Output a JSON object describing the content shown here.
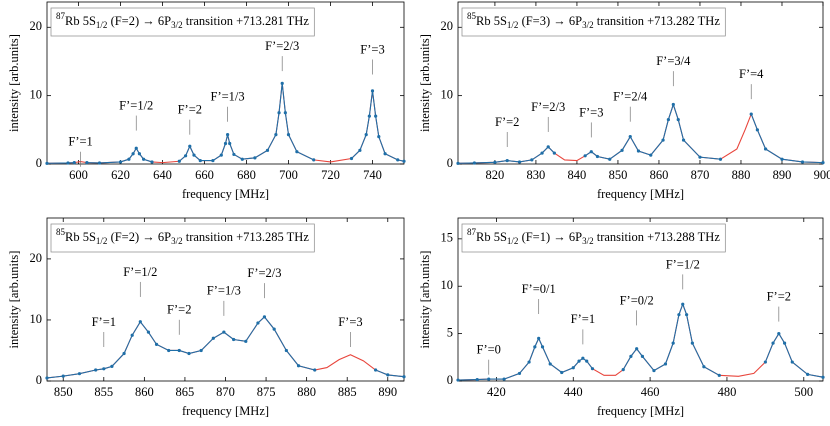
{
  "chart_data": [
    {
      "type": "line",
      "title": [
        "87",
        "Rb 5S",
        "1/2",
        " (F=2) → 6P",
        "3/2",
        " transition +713.281 THz"
      ],
      "xlabel": "frequency [MHz]",
      "ylabel": "intensity [arb.units]",
      "xlim": [
        585,
        755
      ],
      "ylim": [
        0,
        23.7
      ],
      "xticks": [
        600,
        620,
        640,
        660,
        680,
        700,
        720,
        740
      ],
      "yticks": [
        0,
        10,
        20
      ],
      "x": [
        585,
        595,
        598,
        601,
        604,
        610,
        620,
        624,
        626,
        627.5,
        629,
        631,
        635,
        640,
        648,
        651,
        653,
        655,
        658,
        664,
        668,
        670,
        671,
        672,
        674,
        678,
        684,
        690,
        694,
        695.5,
        697,
        698.5,
        700,
        704,
        712,
        720,
        730,
        734,
        737,
        738.5,
        740,
        741.5,
        743,
        746,
        752,
        755
      ],
      "series": [
        {
          "color": "#e8453c",
          "values": [
            0.1,
            0.15,
            0.2,
            0.35,
            0.2,
            0.15,
            0.3,
            0.7,
            1.5,
            2.3,
            1.5,
            0.7,
            0.3,
            0.2,
            0.4,
            1.2,
            2.6,
            1.3,
            0.5,
            0.5,
            1.3,
            3.0,
            4.3,
            3.0,
            1.4,
            0.7,
            0.9,
            2.0,
            4.3,
            7.5,
            11.8,
            7.5,
            4.3,
            1.8,
            0.6,
            0.3,
            0.8,
            2.0,
            4.3,
            7.0,
            10.7,
            7.0,
            4.0,
            1.5,
            0.6,
            0.4
          ]
        },
        {
          "color": "#1f6fa8",
          "marker": "circle",
          "values": [
            0.1,
            0.15,
            0.2,
            null,
            0.2,
            0.15,
            0.3,
            0.7,
            1.5,
            2.3,
            1.5,
            0.7,
            0.3,
            null,
            0.4,
            1.2,
            2.6,
            1.3,
            0.5,
            0.5,
            1.3,
            3.0,
            4.3,
            3.0,
            1.4,
            0.7,
            0.9,
            2.0,
            4.3,
            7.5,
            11.8,
            7.5,
            4.3,
            1.8,
            0.6,
            null,
            0.8,
            2.0,
            4.3,
            7.0,
            10.7,
            7.0,
            4.0,
            1.5,
            0.6,
            0.4
          ]
        }
      ],
      "annotations": [
        {
          "text": "F’=1",
          "x": 601,
          "y": 3.1
        },
        {
          "text": "F’=1/2",
          "x": 627.5,
          "y": 8.4
        },
        {
          "text": "F’=2",
          "x": 653,
          "y": 7.8
        },
        {
          "text": "F’=1/3",
          "x": 671,
          "y": 9.7
        },
        {
          "text": "F’=2/3",
          "x": 697,
          "y": 17.1
        },
        {
          "text": "F’=3",
          "x": 740,
          "y": 16.6
        }
      ]
    },
    {
      "type": "line",
      "title": [
        "85",
        "Rb 5S",
        "1/2",
        " (F=3) → 6P",
        "3/2",
        " transition +713.282 THz"
      ],
      "xlabel": "frequency [MHz]",
      "ylabel": "intensity [arb.units]",
      "xlim": [
        811,
        900
      ],
      "ylim": [
        0,
        23.7
      ],
      "xticks": [
        820,
        830,
        840,
        850,
        860,
        870,
        880,
        890,
        900
      ],
      "yticks": [
        0,
        10,
        20
      ],
      "x": [
        811,
        815,
        820,
        823,
        826,
        829,
        831.5,
        833,
        834.5,
        837,
        840,
        842,
        843.5,
        845,
        848,
        851,
        853,
        855,
        858,
        861,
        862.3,
        863.5,
        864.7,
        866,
        870,
        875,
        879,
        881,
        882.5,
        884,
        886,
        890,
        895,
        900
      ],
      "series": [
        {
          "color": "#e8453c",
          "values": [
            0.1,
            0.15,
            0.25,
            0.5,
            0.3,
            0.6,
            1.6,
            2.5,
            1.6,
            0.6,
            0.5,
            1.2,
            1.8,
            1.1,
            0.7,
            2.0,
            4.0,
            1.9,
            1.3,
            3.5,
            6.5,
            8.7,
            6.5,
            3.5,
            1.0,
            0.7,
            2.2,
            5.0,
            7.3,
            5.0,
            2.2,
            0.7,
            0.3,
            0.2
          ]
        },
        {
          "color": "#1f6fa8",
          "marker": "circle",
          "values": [
            0.1,
            0.15,
            0.25,
            0.5,
            0.3,
            0.6,
            1.6,
            2.5,
            1.6,
            null,
            null,
            1.2,
            1.8,
            1.1,
            0.7,
            2.0,
            4.0,
            1.9,
            1.3,
            3.5,
            6.5,
            8.7,
            6.5,
            3.5,
            1.0,
            0.7,
            null,
            null,
            7.3,
            5.0,
            2.2,
            0.7,
            0.3,
            0.2
          ]
        }
      ],
      "annotations": [
        {
          "text": "F’=2",
          "x": 823,
          "y": 6.0
        },
        {
          "text": "F’=2/3",
          "x": 833,
          "y": 8.2
        },
        {
          "text": "F’=3",
          "x": 843.5,
          "y": 7.4
        },
        {
          "text": "F’=2/4",
          "x": 853,
          "y": 9.7
        },
        {
          "text": "F’=3/4",
          "x": 863.5,
          "y": 14.9
        },
        {
          "text": "F’=4",
          "x": 882.5,
          "y": 13.0
        }
      ]
    },
    {
      "type": "line",
      "title": [
        "85",
        "Rb 5S",
        "1/2",
        " (F=2) → 6P",
        "3/2",
        " transition +713.285 THz"
      ],
      "xlabel": "frequency [MHz]",
      "ylabel": "intensity [arb.units]",
      "xlim": [
        848,
        892
      ],
      "ylim": [
        0,
        26.7
      ],
      "xticks": [
        850,
        855,
        860,
        865,
        870,
        875,
        880,
        885,
        890
      ],
      "yticks": [
        0,
        10,
        20
      ],
      "x": [
        848,
        850,
        852,
        854,
        855,
        856,
        857.5,
        858.5,
        859.5,
        860.5,
        861.5,
        863,
        864.3,
        865.5,
        867,
        868.5,
        869.8,
        871,
        872.5,
        874,
        874.8,
        876,
        877.5,
        879,
        881,
        882.5,
        884,
        885.4,
        887,
        888.5,
        890,
        892
      ],
      "series": [
        {
          "color": "#e8453c",
          "values": [
            0.5,
            0.8,
            1.2,
            1.8,
            2.0,
            2.4,
            4.5,
            7.5,
            9.7,
            8.0,
            6.0,
            5.0,
            5.0,
            4.5,
            5.0,
            7.0,
            8.0,
            6.8,
            6.5,
            9.5,
            10.5,
            8.5,
            5.0,
            2.5,
            1.8,
            2.2,
            3.5,
            4.3,
            3.3,
            1.8,
            1.0,
            0.7
          ]
        },
        {
          "color": "#1f6fa8",
          "marker": "circle",
          "values": [
            0.5,
            0.8,
            1.2,
            1.8,
            2.0,
            2.4,
            4.5,
            7.5,
            9.7,
            8.0,
            6.0,
            5.0,
            5.0,
            4.5,
            5.0,
            7.0,
            8.0,
            6.8,
            6.5,
            9.5,
            10.5,
            8.5,
            5.0,
            2.5,
            1.8,
            null,
            null,
            null,
            null,
            1.8,
            1.0,
            0.7
          ]
        }
      ],
      "annotations": [
        {
          "text": "F’=1",
          "x": 855,
          "y": 9.5
        },
        {
          "text": "F’=1/2",
          "x": 859.5,
          "y": 17.7
        },
        {
          "text": "F’=2",
          "x": 864.3,
          "y": 11.5
        },
        {
          "text": "F’=1/3",
          "x": 869.8,
          "y": 14.6
        },
        {
          "text": "F’=2/3",
          "x": 874.8,
          "y": 17.5
        },
        {
          "text": "F’=3",
          "x": 885.4,
          "y": 9.5
        }
      ]
    },
    {
      "type": "line",
      "title": [
        "87",
        "Rb 5S",
        "1/2",
        " (F=1) → 6P",
        "3/2",
        " transition +713.288 THz"
      ],
      "xlabel": "frequency [MHz]",
      "ylabel": "intensity [arb.units]",
      "xlim": [
        410,
        505
      ],
      "ylim": [
        0,
        17.2
      ],
      "xticks": [
        420,
        440,
        460,
        480,
        500
      ],
      "yticks": [
        0,
        5,
        10,
        15
      ],
      "x": [
        410,
        415,
        418,
        422,
        426,
        428.5,
        430,
        431,
        432,
        434,
        437,
        440,
        441.5,
        442.5,
        443.5,
        445,
        448,
        451,
        453,
        455,
        456.5,
        458,
        461,
        464,
        466,
        467.5,
        468.5,
        469.5,
        471,
        474,
        478,
        483,
        487,
        490,
        492,
        493.5,
        495,
        497,
        501,
        505
      ],
      "series": [
        {
          "color": "#e8453c",
          "values": [
            0.1,
            0.15,
            0.2,
            0.2,
            0.8,
            2.0,
            3.6,
            4.5,
            3.6,
            1.8,
            0.9,
            1.4,
            2.1,
            2.4,
            2.1,
            1.3,
            0.6,
            0.6,
            1.2,
            2.6,
            3.4,
            2.6,
            1.1,
            1.8,
            4.0,
            7.0,
            8.1,
            7.0,
            4.0,
            1.5,
            0.6,
            0.5,
            0.8,
            2.0,
            4.0,
            5.0,
            4.0,
            2.0,
            0.7,
            0.4
          ]
        },
        {
          "color": "#1f6fa8",
          "marker": "circle",
          "values": [
            0.1,
            0.15,
            0.2,
            0.2,
            0.8,
            2.0,
            3.6,
            4.5,
            3.6,
            1.8,
            0.9,
            1.4,
            2.1,
            2.4,
            2.1,
            1.3,
            null,
            null,
            1.2,
            2.6,
            3.4,
            2.6,
            1.1,
            1.8,
            4.0,
            7.0,
            8.1,
            7.0,
            4.0,
            1.5,
            0.6,
            null,
            null,
            2.0,
            4.0,
            5.0,
            4.0,
            2.0,
            0.7,
            0.4
          ]
        }
      ],
      "annotations": [
        {
          "text": "F’=0",
          "x": 418,
          "y": 3.2
        },
        {
          "text": "F’=0/1",
          "x": 431,
          "y": 9.6
        },
        {
          "text": "F’=1",
          "x": 442.5,
          "y": 6.4
        },
        {
          "text": "F’=0/2",
          "x": 456.5,
          "y": 8.4
        },
        {
          "text": "F’=1/2",
          "x": 468.5,
          "y": 12.2
        },
        {
          "text": "F’=2",
          "x": 493.5,
          "y": 8.8
        }
      ]
    }
  ]
}
